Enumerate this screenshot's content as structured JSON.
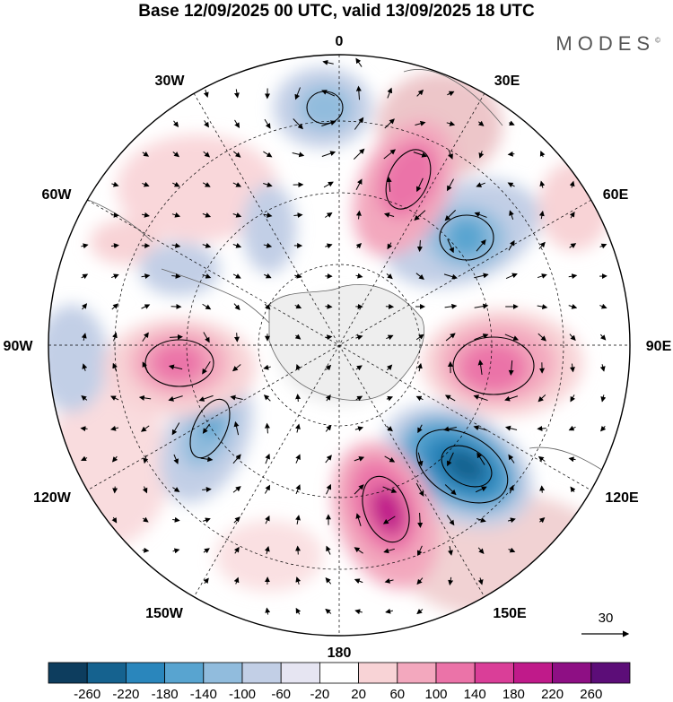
{
  "title": "Base 12/09/2025 00 UTC, valid 13/09/2025 18 UTC",
  "brand": "MODES",
  "brand_mark": "©",
  "map": {
    "projection": "south-polar-stereographic",
    "longitude_labels": {
      "top": "0",
      "top_right": "30E",
      "right_upper": "60E",
      "right": "90E",
      "right_lower": "120E",
      "bottom_right": "150E",
      "bottom": "180",
      "bottom_left": "150W",
      "left_lower": "120W",
      "left": "90W",
      "left_upper": "60W",
      "top_left": "30W"
    },
    "vector_reference": "30"
  },
  "legend": {
    "colors": [
      "#0d3d5e",
      "#15628f",
      "#2a86bc",
      "#58a4d0",
      "#91bcdd",
      "#c2cfe6",
      "#e6e5f2",
      "#ffffff",
      "#f8d3d6",
      "#f3a8be",
      "#eb73a8",
      "#da3e98",
      "#c01a8a",
      "#8e0f84",
      "#5c0d78"
    ],
    "tick_labels": [
      "-260",
      "-220",
      "-180",
      "-140",
      "-100",
      "-60",
      "-20",
      "20",
      "60",
      "100",
      "140",
      "180",
      "220",
      "260"
    ]
  }
}
